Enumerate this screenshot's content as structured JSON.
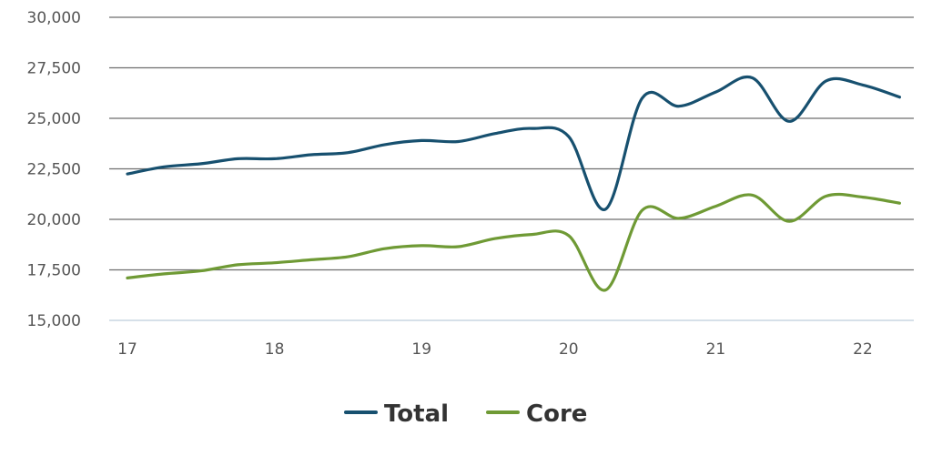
{
  "chart_data": {
    "type": "line",
    "title": "",
    "xlabel": "",
    "ylabel": "",
    "x": [
      17,
      17.25,
      17.5,
      17.75,
      18,
      18.25,
      18.5,
      18.75,
      19,
      19.25,
      19.5,
      19.75,
      20,
      20.25,
      20.5,
      20.75,
      21,
      21.25,
      21.5,
      21.75,
      22,
      22.25
    ],
    "series": [
      {
        "name": "Total",
        "color": "#17506f",
        "values": [
          22250,
          22600,
          22750,
          23000,
          23000,
          23200,
          23300,
          23700,
          23900,
          23850,
          24250,
          24500,
          24100,
          20500,
          26000,
          25600,
          26300,
          27000,
          24850,
          26850,
          26650,
          26050
        ]
      },
      {
        "name": "Core",
        "color": "#6f9a35",
        "values": [
          17100,
          17300,
          17450,
          17750,
          17850,
          18000,
          18150,
          18550,
          18700,
          18650,
          19050,
          19250,
          19200,
          16500,
          20450,
          20050,
          20650,
          21200,
          19900,
          21150,
          21100,
          20800
        ]
      }
    ],
    "xlim": [
      16.9,
      22.55
    ],
    "ylim": [
      15000,
      30000
    ],
    "x_ticks": [
      "17",
      "18",
      "19",
      "20",
      "21",
      "22"
    ],
    "y_ticks": [
      "15,000",
      "17,500",
      "20,000",
      "22,500",
      "25,000",
      "27,500",
      "30,000"
    ],
    "grid": true,
    "legend_position": "bottom-center"
  }
}
